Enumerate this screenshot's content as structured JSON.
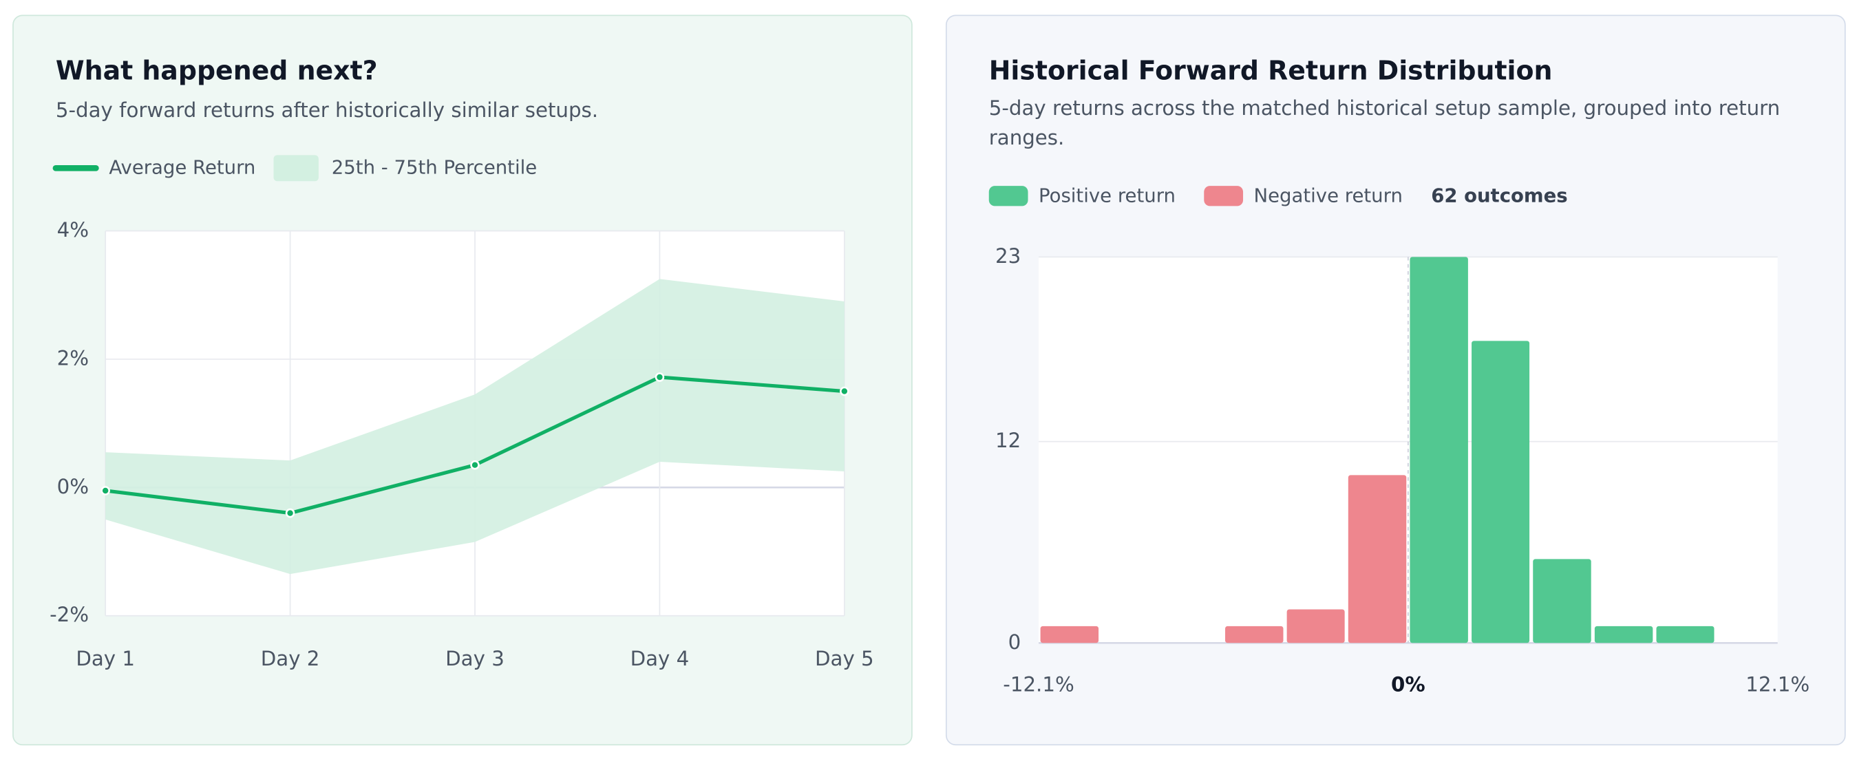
{
  "chart_data": [
    {
      "type": "line",
      "title": "What happened next?",
      "subtitle": "5-day forward returns after historically similar setups.",
      "categories": [
        "Day 1",
        "Day 2",
        "Day 3",
        "Day 4",
        "Day 5"
      ],
      "series": [
        {
          "name": "Average Return",
          "color": "#10b065",
          "values": [
            -0.05,
            -0.4,
            0.35,
            1.72,
            1.5
          ]
        }
      ],
      "band": {
        "name": "25th - 75th Percentile",
        "color": "#d3f0e1",
        "upper": [
          0.55,
          0.42,
          1.45,
          3.25,
          2.9
        ],
        "lower": [
          -0.5,
          -1.35,
          -0.85,
          0.4,
          0.25
        ]
      },
      "ylim": [
        -2,
        4
      ],
      "yticks": [
        {
          "value": -2,
          "label": "-2%"
        },
        {
          "value": 0,
          "label": "0%"
        },
        {
          "value": 2,
          "label": "2%"
        },
        {
          "value": 4,
          "label": "4%"
        }
      ],
      "grid": true
    },
    {
      "type": "histogram",
      "title": "Historical Forward Return Distribution",
      "subtitle": "5-day returns across the matched historical setup sample, grouped into return ranges.",
      "legend": [
        {
          "name": "Positive return",
          "color": "#52c891"
        },
        {
          "name": "Negative return",
          "color": "#ee868e"
        }
      ],
      "note": "62 outcomes",
      "bins": [
        -12.1,
        -10.08,
        -8.07,
        -6.05,
        -4.03,
        -2.02,
        0,
        2.02,
        4.03,
        6.05,
        8.07,
        10.08,
        12.1
      ],
      "counts": [
        1,
        0,
        0,
        1,
        2,
        10,
        23,
        18,
        5,
        1,
        1,
        0
      ],
      "xlim": [
        -12.1,
        12.1
      ],
      "xticks": [
        {
          "value": -12.1,
          "label": "-12.1%"
        },
        {
          "value": 0,
          "label": "0%"
        },
        {
          "value": 12.1,
          "label": "12.1%"
        }
      ],
      "ylim": [
        0,
        23
      ],
      "yticks": [
        0,
        12,
        23
      ],
      "grid": true
    }
  ]
}
